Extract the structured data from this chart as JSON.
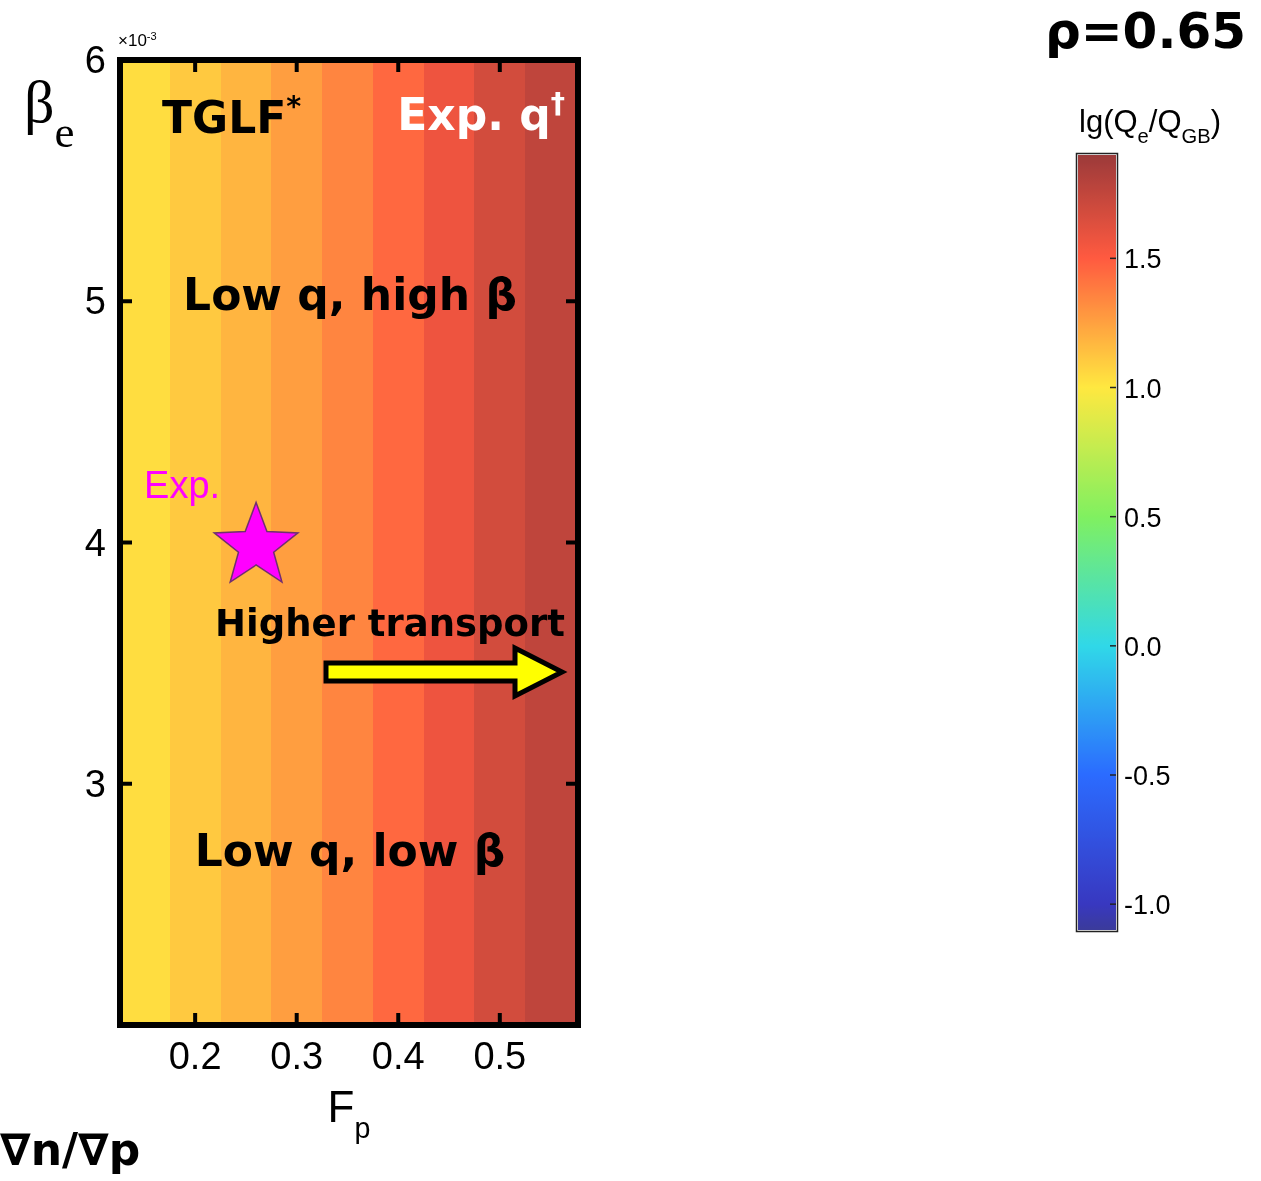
{
  "chart_data": {
    "type": "heatmap",
    "title": "ρ=0.65",
    "xlabel": "F$_{p}$",
    "ylabel": "β$_{e}$",
    "clabel": "lg(Q$_{e}$/Q$_{GB}$)",
    "x": [
      0.15,
      0.2,
      0.25,
      0.3,
      0.35,
      0.4,
      0.45,
      0.5,
      0.55
    ],
    "cells": [
      [
        1.04,
        1.11,
        1.18,
        1.26,
        1.35,
        1.45,
        1.57,
        1.68,
        1.76
      ]
    ],
    "xlim": [
      0.126,
      0.577
    ],
    "ylim": [
      2.0,
      6.0
    ],
    "xticks": [
      0.2,
      0.3,
      0.4,
      0.5
    ],
    "yticks": [
      3,
      4,
      5,
      6
    ],
    "clim": [
      -1.1,
      1.9
    ],
    "cticks": [
      {
        "value": -1,
        "label": "-1.0"
      },
      -0.5,
      {
        "value": 0,
        "label": "0.0"
      },
      0.5,
      {
        "value": 1,
        "label": "1.0"
      },
      1.5
    ],
    "series": [
      {
        "type": "scatter",
        "name": "Exp.",
        "color": "#ff00ff",
        "marker": "star",
        "x": [
          0.26
        ],
        "values": [
          4.0
        ]
      }
    ],
    "annotations": [
      "×10$^{-3}$",
      "TGLF$^{*}$",
      "Exp. q$^{†}$",
      "Low q, high β",
      "Higher transport",
      "Low q, low β",
      "∇n/∇p"
    ]
  }
}
